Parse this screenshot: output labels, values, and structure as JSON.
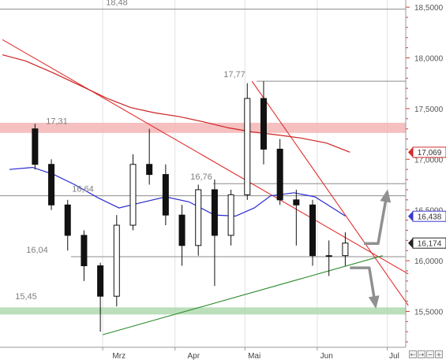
{
  "chart_data": {
    "type": "candlestick",
    "title": "",
    "xlabel": "",
    "ylabel": "",
    "ylim": [
      15.28,
      18.6
    ],
    "x_ticks": [
      "Mrz",
      "Apr",
      "Mai",
      "Jun",
      "Jul"
    ],
    "y_ticks": [
      "15,5000",
      "16,0000",
      "16,5000",
      "17,0000",
      "17,5000",
      "18,0000",
      "18,5000"
    ],
    "grid": {
      "horizontal": false,
      "vertical": true
    },
    "level_labels": [
      "18,48",
      "17,77",
      "17,31",
      "16,76",
      "16,64",
      "16,04",
      "15,45"
    ],
    "horizontal_lines": [
      18.48,
      17.77,
      16.76,
      16.64,
      16.04
    ],
    "resistance_zone": {
      "low": 17.26,
      "high": 17.36,
      "color": "#f5b5b5"
    },
    "support_zone": {
      "low": 15.47,
      "high": 15.54,
      "color": "#b4dcb4"
    },
    "price_badges": [
      {
        "label": "17,069",
        "value": 17.069,
        "color": "#d42a2a"
      },
      {
        "label": "16,438",
        "value": 16.438,
        "color": "#3a3ad0"
      },
      {
        "label": "16,174",
        "value": 16.174,
        "color": "#222222"
      }
    ],
    "trendlines": [
      {
        "name": "",
        "color": "#e03030",
        "points": [
          [
            "2017-01-17",
            18.18
          ],
          [
            "2017-07-10",
            15.87
          ]
        ]
      },
      {
        "name": "",
        "color": "#e03030",
        "points": [
          [
            "2017-05-04",
            17.77
          ],
          [
            "2017-07-10",
            15.56
          ]
        ]
      },
      {
        "name": "",
        "color": "#2e8b2e",
        "points": [
          [
            "2017-03-01",
            15.27
          ],
          [
            "2017-06-29",
            16.05
          ]
        ]
      }
    ],
    "series": [
      {
        "name": "",
        "type": "line",
        "color": "#cc2222",
        "x": [
          "2017-01-17",
          "2017-01-27",
          "2017-02-08",
          "2017-02-20",
          "2017-03-03",
          "2017-03-13",
          "2017-03-23",
          "2017-04-03",
          "2017-04-13",
          "2017-04-24",
          "2017-05-04",
          "2017-05-15",
          "2017-05-25",
          "2017-06-05",
          "2017-06-15"
        ],
        "y": [
          18.03,
          17.97,
          17.85,
          17.72,
          17.6,
          17.51,
          17.46,
          17.42,
          17.37,
          17.31,
          17.27,
          17.24,
          17.21,
          17.16,
          17.07
        ]
      },
      {
        "name": "",
        "type": "line",
        "color": "#2a2ad0",
        "x": [
          "2017-01-20",
          "2017-01-30",
          "2017-02-08",
          "2017-02-17",
          "2017-02-27",
          "2017-03-08",
          "2017-03-17",
          "2017-03-28",
          "2017-04-07",
          "2017-04-18",
          "2017-04-27",
          "2017-05-05",
          "2017-05-12",
          "2017-05-22",
          "2017-05-31",
          "2017-06-09",
          "2017-06-13"
        ],
        "y": [
          16.9,
          16.92,
          16.85,
          16.75,
          16.62,
          16.52,
          16.57,
          16.63,
          16.58,
          16.45,
          16.44,
          16.52,
          16.64,
          16.67,
          16.63,
          16.5,
          16.44
        ]
      },
      {
        "name": "",
        "type": "ohlc",
        "x": [
          "2017-01-31",
          "2017-02-07",
          "2017-02-14",
          "2017-02-21",
          "2017-02-28",
          "2017-03-07",
          "2017-03-14",
          "2017-03-21",
          "2017-03-28",
          "2017-04-04",
          "2017-04-11",
          "2017-04-18",
          "2017-04-25",
          "2017-05-02",
          "2017-05-09",
          "2017-05-16",
          "2017-05-23",
          "2017-05-30",
          "2017-06-06",
          "2017-06-13"
        ],
        "open": [
          17.3,
          16.95,
          16.55,
          16.25,
          15.95,
          15.65,
          16.35,
          16.95,
          16.85,
          16.45,
          16.15,
          16.7,
          16.25,
          16.65,
          17.6,
          17.1,
          16.6,
          16.55,
          16.05,
          16.05
        ],
        "high": [
          17.35,
          17.0,
          16.6,
          16.3,
          15.98,
          16.45,
          17.05,
          17.3,
          16.95,
          16.55,
          16.75,
          16.8,
          16.7,
          17.75,
          17.77,
          17.2,
          16.7,
          16.6,
          16.2,
          16.28
        ],
        "low": [
          16.9,
          16.5,
          16.1,
          15.8,
          15.3,
          15.55,
          16.3,
          16.75,
          16.35,
          15.95,
          16.05,
          15.75,
          16.15,
          16.6,
          16.95,
          16.55,
          16.15,
          15.95,
          15.85,
          15.95
        ],
        "close": [
          16.95,
          16.55,
          16.25,
          15.95,
          15.65,
          16.35,
          16.95,
          16.85,
          16.45,
          16.15,
          16.7,
          16.25,
          16.65,
          17.6,
          17.1,
          16.6,
          16.55,
          16.05,
          16.05,
          16.174
        ]
      }
    ],
    "annotations": [
      {
        "type": "arrow",
        "direction": "up",
        "color": "#909090",
        "from": [
          "2017-06-21",
          16.17
        ],
        "to": [
          "2017-07-01",
          16.68
        ]
      },
      {
        "type": "arrow",
        "direction": "down",
        "color": "#909090",
        "from": [
          "2017-06-15",
          15.93
        ],
        "to": [
          "2017-06-26",
          15.55
        ]
      }
    ]
  },
  "toolbar": {
    "nav_left": "⇠",
    "nav_right": "⇢",
    "zoom_out": "−",
    "zoom_in": "+"
  }
}
